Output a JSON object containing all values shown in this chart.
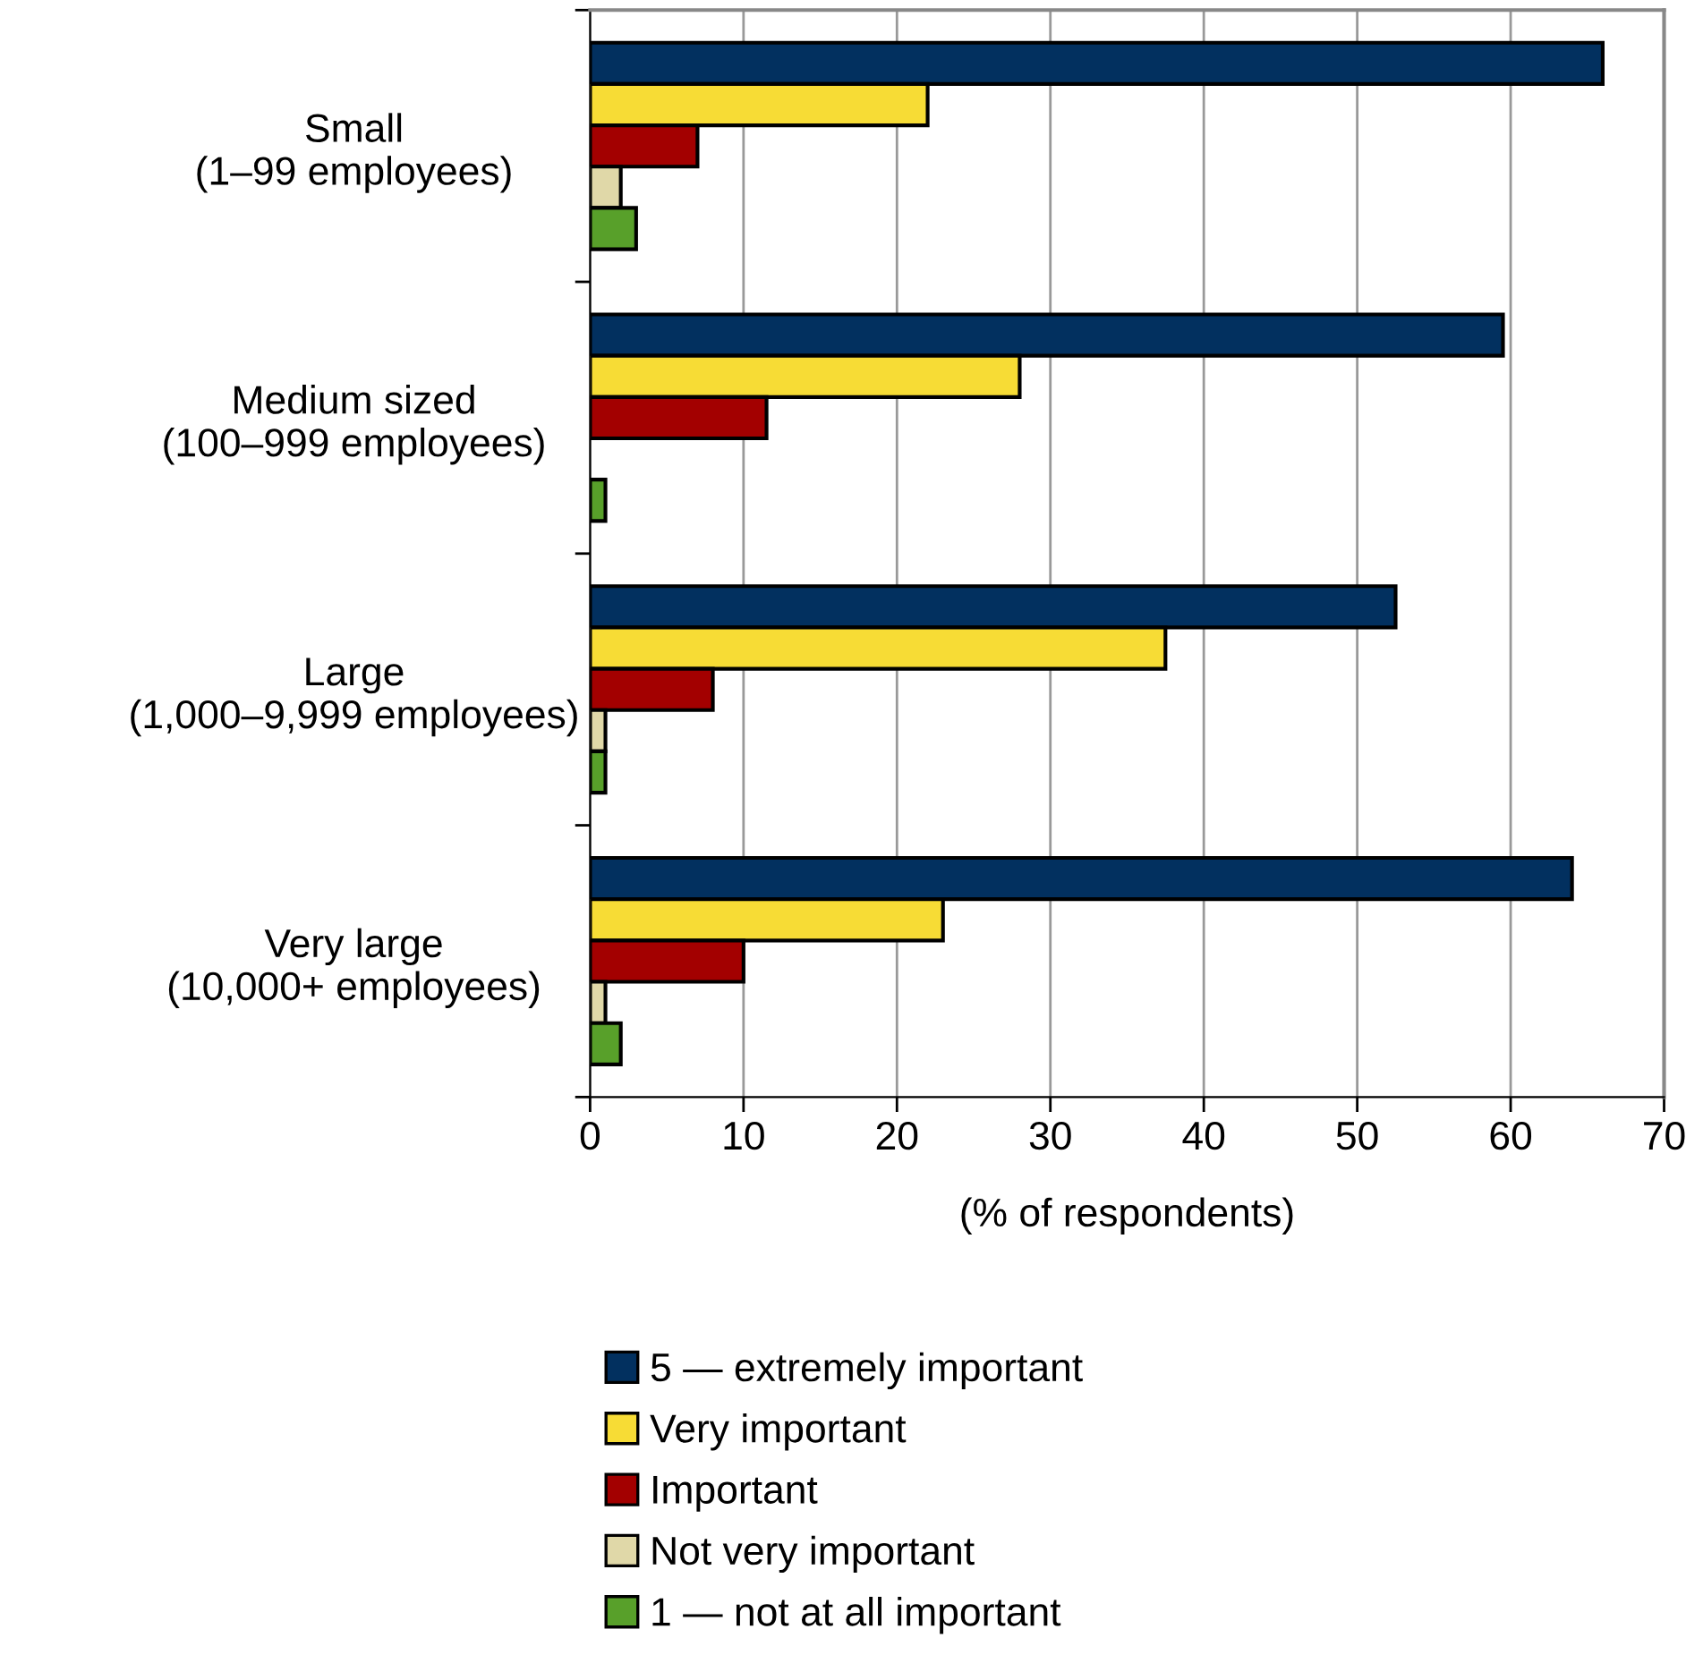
{
  "chart_data": {
    "type": "bar",
    "orientation": "horizontal",
    "categories": [
      "Small\n(1–99 employees)",
      "Medium sized\n(100–999 employees)",
      "Large\n(1,000–9,999 employees)",
      "Very large\n(10,000+ employees)"
    ],
    "series": [
      {
        "name": "5 — extremely important",
        "color": "#02305f",
        "values": [
          66,
          59.5,
          52.5,
          64
        ]
      },
      {
        "name": "Very important",
        "color": "#f7dc35",
        "values": [
          22,
          28,
          37.5,
          23
        ]
      },
      {
        "name": "Important",
        "color": "#a30000",
        "values": [
          7,
          11.5,
          8,
          10
        ]
      },
      {
        "name": "Not very important",
        "color": "#e0d8a8",
        "values": [
          2,
          null,
          1,
          1
        ]
      },
      {
        "name": "1 — not at all important",
        "color": "#58a02a",
        "values": [
          3,
          1,
          1,
          2
        ]
      }
    ],
    "xlabel": "(% of respondents)",
    "xlim": [
      0,
      70
    ],
    "xticks": [
      0,
      10,
      20,
      30,
      40,
      50,
      60,
      70
    ],
    "grid": "x",
    "legend": "bottom"
  }
}
